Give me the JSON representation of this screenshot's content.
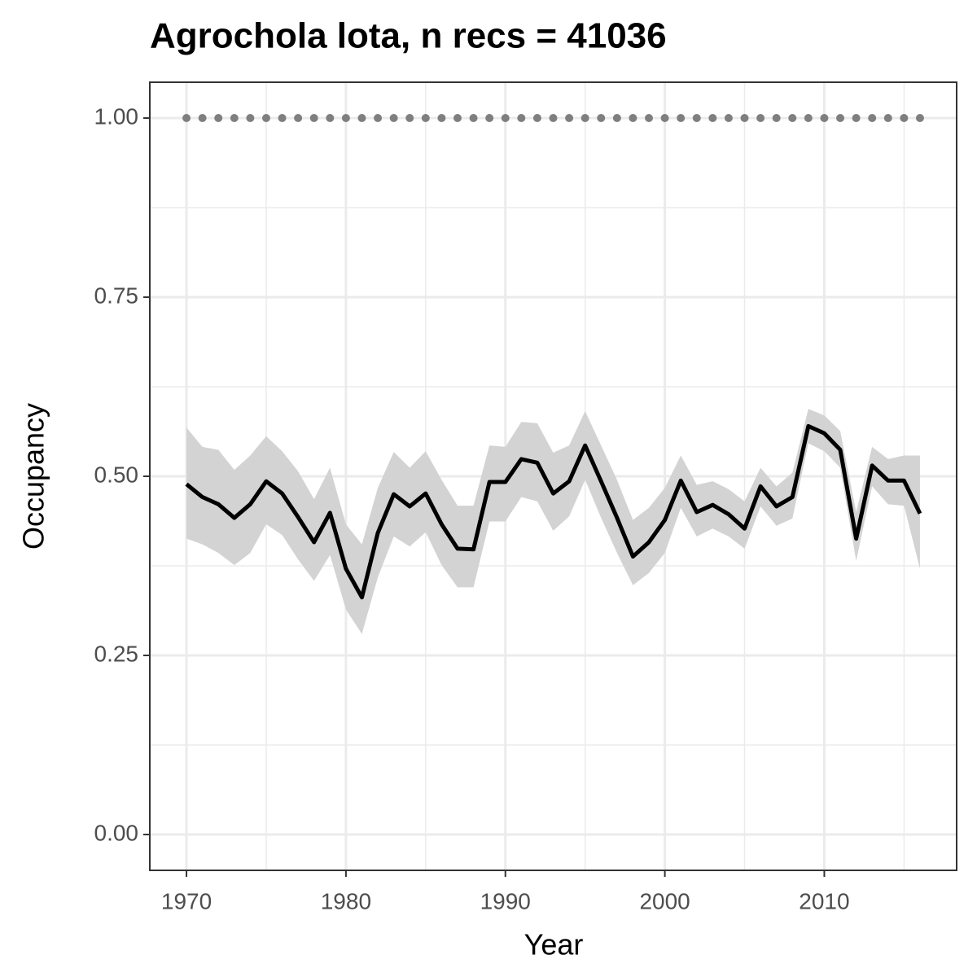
{
  "chart_data": {
    "type": "line",
    "title": "Agrochola lota, n recs = 41036",
    "x_label": "Year",
    "y_label": "Occupancy",
    "x": [
      1970,
      1971,
      1972,
      1973,
      1974,
      1975,
      1976,
      1977,
      1978,
      1979,
      1980,
      1981,
      1982,
      1983,
      1984,
      1985,
      1986,
      1987,
      1988,
      1989,
      1990,
      1991,
      1992,
      1993,
      1994,
      1995,
      1996,
      1997,
      1998,
      1999,
      2000,
      2001,
      2002,
      2003,
      2004,
      2005,
      2006,
      2007,
      2008,
      2009,
      2010,
      2011,
      2012,
      2013,
      2014,
      2015,
      2016
    ],
    "series": [
      {
        "color": "#000000",
        "band_color": "#d3d3d3",
        "values": [
          0.489,
          0.471,
          0.461,
          0.442,
          0.461,
          0.493,
          0.476,
          0.443,
          0.408,
          0.449,
          0.371,
          0.331,
          0.421,
          0.475,
          0.458,
          0.476,
          0.433,
          0.399,
          0.398,
          0.492,
          0.492,
          0.524,
          0.519,
          0.476,
          0.493,
          0.543,
          0.493,
          0.442,
          0.388,
          0.408,
          0.439,
          0.494,
          0.45,
          0.46,
          0.447,
          0.427,
          0.486,
          0.458,
          0.471,
          0.57,
          0.56,
          0.537,
          0.413,
          0.515,
          0.494,
          0.494,
          0.448
        ],
        "upper": [
          0.568,
          0.541,
          0.537,
          0.509,
          0.529,
          0.556,
          0.535,
          0.507,
          0.468,
          0.512,
          0.433,
          0.405,
          0.484,
          0.534,
          0.512,
          0.535,
          0.495,
          0.459,
          0.459,
          0.543,
          0.541,
          0.576,
          0.574,
          0.533,
          0.543,
          0.591,
          0.543,
          0.495,
          0.439,
          0.456,
          0.484,
          0.529,
          0.488,
          0.493,
          0.482,
          0.465,
          0.512,
          0.486,
          0.505,
          0.594,
          0.585,
          0.563,
          0.45,
          0.541,
          0.524,
          0.529,
          0.529
        ],
        "lower": [
          0.413,
          0.405,
          0.393,
          0.376,
          0.393,
          0.433,
          0.418,
          0.384,
          0.354,
          0.39,
          0.314,
          0.28,
          0.359,
          0.416,
          0.402,
          0.422,
          0.376,
          0.345,
          0.345,
          0.437,
          0.437,
          0.471,
          0.465,
          0.424,
          0.444,
          0.495,
          0.442,
          0.393,
          0.348,
          0.365,
          0.393,
          0.456,
          0.416,
          0.427,
          0.416,
          0.399,
          0.458,
          0.431,
          0.441,
          0.546,
          0.535,
          0.512,
          0.382,
          0.486,
          0.461,
          0.459,
          0.371
        ]
      },
      {
        "color": "#7f7f7f",
        "style": "dotted",
        "values": [
          1,
          1,
          1,
          1,
          1,
          1,
          1,
          1,
          1,
          1,
          1,
          1,
          1,
          1,
          1,
          1,
          1,
          1,
          1,
          1,
          1,
          1,
          1,
          1,
          1,
          1,
          1,
          1,
          1,
          1,
          1,
          1,
          1,
          1,
          1,
          1,
          1,
          1,
          1,
          1,
          1,
          1,
          1,
          1,
          1,
          1,
          1
        ]
      }
    ],
    "xlim": [
      1967.7,
      2018.3
    ],
    "ylim": [
      -0.05,
      1.05
    ],
    "xticks": [
      1970,
      1980,
      1990,
      2000,
      2010
    ],
    "yticks": [
      {
        "value": 0,
        "label": "0.00"
      },
      {
        "value": 0.25,
        "label": "0.25"
      },
      {
        "value": 0.5,
        "label": "0.50"
      },
      {
        "value": 0.75,
        "label": "0.75"
      },
      {
        "value": 1,
        "label": "1.00"
      }
    ],
    "grid": true,
    "minor_grid": true
  }
}
